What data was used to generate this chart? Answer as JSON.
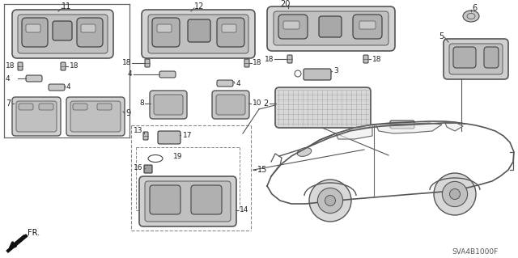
{
  "bg_color": "#ffffff",
  "diagram_code": "SVA4B1000F",
  "figsize": [
    6.4,
    3.19
  ],
  "dpi": 100
}
